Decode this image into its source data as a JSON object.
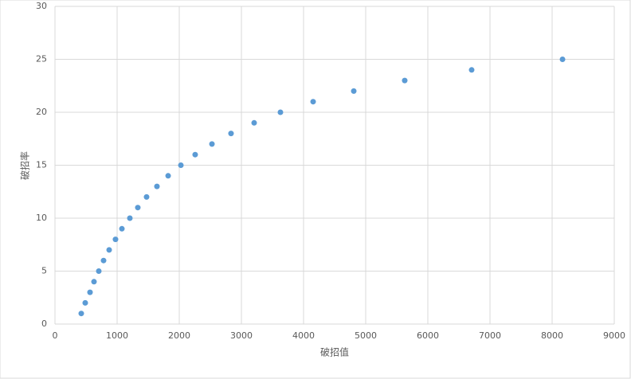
{
  "chart_data": {
    "type": "scatter",
    "x_label": "破招值",
    "y_label": "破招率",
    "series": [
      {
        "color": "#5b9bd5",
        "x": [
          423,
          487,
          564,
          628,
          705,
          782,
          872,
          974,
          1077,
          1205,
          1333,
          1474,
          1641,
          1821,
          2026,
          2256,
          2526,
          2833,
          3205,
          3628,
          4154,
          4808,
          5628,
          6705,
          8167
        ],
        "values": [
          1,
          2,
          3,
          4,
          5,
          6,
          7,
          8,
          9,
          10,
          11,
          12,
          13,
          14,
          15,
          16,
          17,
          18,
          19,
          20,
          21,
          22,
          23,
          24,
          25
        ]
      }
    ],
    "xlim": [
      0,
      9000
    ],
    "xticks": [
      0,
      1000,
      2000,
      3000,
      4000,
      5000,
      6000,
      7000,
      8000,
      9000
    ],
    "ylim": [
      0,
      30
    ],
    "yticks": [
      0,
      5,
      10,
      15,
      20,
      25,
      30
    ],
    "grid": true
  }
}
